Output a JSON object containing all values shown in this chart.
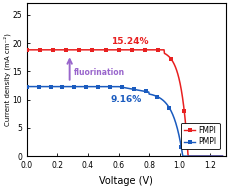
{
  "title": "",
  "xlabel": "Voltage (V)",
  "ylabel": "Current density (mA cm⁻²)",
  "xlim": [
    0.0,
    1.3
  ],
  "ylim": [
    0,
    27
  ],
  "yticks": [
    0,
    5,
    10,
    15,
    20,
    25
  ],
  "xticks": [
    0.0,
    0.2,
    0.4,
    0.6,
    0.8,
    1.0,
    1.2
  ],
  "fmpi_color": "#e82020",
  "pmpi_color": "#1a5bbf",
  "arrow_color": "#9966cc",
  "fmpi_label": "FMPI",
  "pmpi_label": "PMPI",
  "fmpi_pce": "15.24%",
  "pmpi_pce": "9.16%",
  "fluorination_text": "fluorination",
  "fmpi_jsc": 18.8,
  "fmpi_voc": 1.055,
  "pmpi_jsc": 12.3,
  "pmpi_voc": 1.02,
  "bg_color": "#ffffff",
  "legend_box": true
}
